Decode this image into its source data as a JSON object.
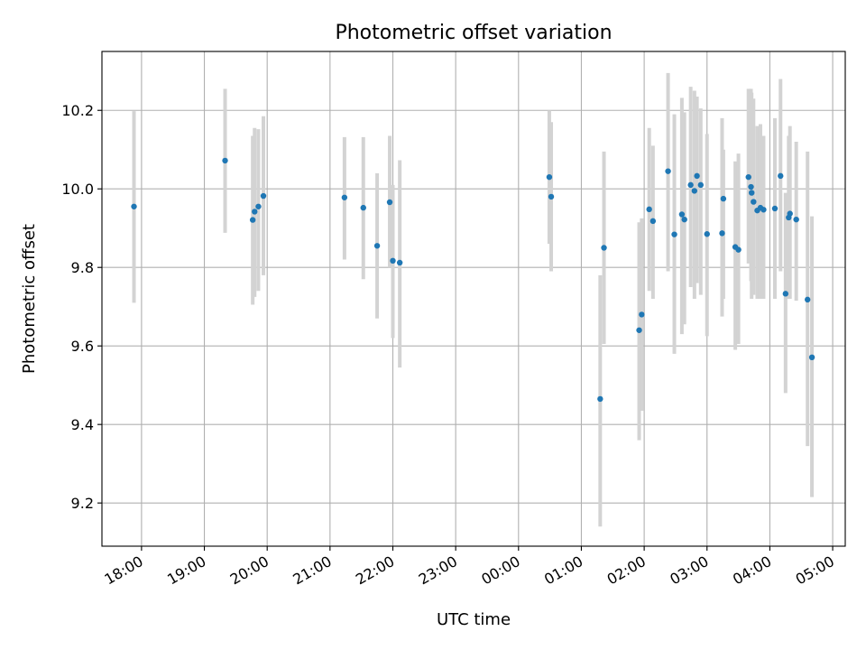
{
  "chart_data": {
    "type": "scatter",
    "title": "Photometric offset variation",
    "xlabel": "UTC time",
    "ylabel": "Photometric offset",
    "x_ticks": [
      "18:00",
      "19:00",
      "20:00",
      "21:00",
      "22:00",
      "23:00",
      "00:00",
      "01:00",
      "02:00",
      "03:00",
      "04:00",
      "05:00"
    ],
    "y_ticks": [
      "9.2",
      "9.4",
      "9.6",
      "9.8",
      "10.0",
      "10.2"
    ],
    "ylim": [
      9.09,
      10.35
    ],
    "xlim_hours": [
      17.37,
      29.2
    ],
    "grid": true,
    "errorbars": true,
    "colors": {
      "point": "#1f77b4",
      "errorbar": "#d3d3d3",
      "grid": "#b0b0b0"
    },
    "series": [
      {
        "x_hours": [
          17.88,
          19.33,
          19.77,
          19.8,
          19.86,
          19.94,
          21.23,
          21.53,
          21.75,
          21.95,
          22.0,
          22.11,
          24.49,
          24.52,
          25.3,
          25.36,
          25.92,
          25.96,
          26.08,
          26.14,
          26.38,
          26.48,
          26.6,
          26.64,
          26.74,
          26.8,
          26.84,
          26.9,
          27.0,
          27.24,
          27.26,
          27.45,
          27.5,
          27.66,
          27.7,
          27.71,
          27.74,
          27.8,
          27.85,
          27.9,
          28.08,
          28.17,
          28.25,
          28.3,
          28.32,
          28.42,
          28.6,
          28.67
        ],
        "y": [
          9.955,
          10.072,
          9.921,
          9.942,
          9.955,
          9.982,
          9.978,
          9.952,
          9.855,
          9.966,
          9.817,
          9.812,
          10.03,
          9.98,
          9.465,
          9.85,
          9.64,
          9.68,
          9.948,
          9.918,
          10.045,
          9.884,
          9.935,
          9.922,
          10.01,
          9.995,
          10.033,
          10.01,
          9.885,
          9.887,
          9.975,
          9.852,
          9.845,
          10.03,
          10.005,
          9.99,
          9.967,
          9.945,
          9.952,
          9.947,
          9.95,
          10.033,
          9.733,
          9.927,
          9.937,
          9.922,
          9.718,
          9.571
        ],
        "yerr_low": [
          9.71,
          9.888,
          9.705,
          9.725,
          9.74,
          9.78,
          9.82,
          9.77,
          9.67,
          9.8,
          9.62,
          9.545,
          9.86,
          9.79,
          9.14,
          9.605,
          9.36,
          9.435,
          9.74,
          9.72,
          9.79,
          9.58,
          9.63,
          9.655,
          9.75,
          9.72,
          9.76,
          9.73,
          9.625,
          9.675,
          9.72,
          9.59,
          9.605,
          9.81,
          9.765,
          9.72,
          9.73,
          9.72,
          9.72,
          9.72,
          9.72,
          9.79,
          9.48,
          9.72,
          9.72,
          9.715,
          9.345,
          9.215
        ],
        "yerr_high": [
          10.198,
          10.255,
          10.135,
          10.155,
          10.152,
          10.185,
          10.132,
          10.132,
          10.04,
          10.135,
          10.01,
          10.073,
          10.2,
          10.17,
          9.78,
          10.095,
          9.915,
          9.925,
          10.155,
          10.11,
          10.295,
          10.19,
          10.232,
          10.195,
          10.26,
          10.25,
          10.235,
          10.205,
          10.14,
          10.18,
          10.1,
          10.07,
          10.09,
          10.255,
          10.255,
          10.245,
          10.23,
          10.16,
          10.165,
          10.135,
          10.18,
          10.28,
          9.99,
          10.135,
          10.16,
          10.12,
          10.095,
          9.93
        ]
      }
    ]
  }
}
